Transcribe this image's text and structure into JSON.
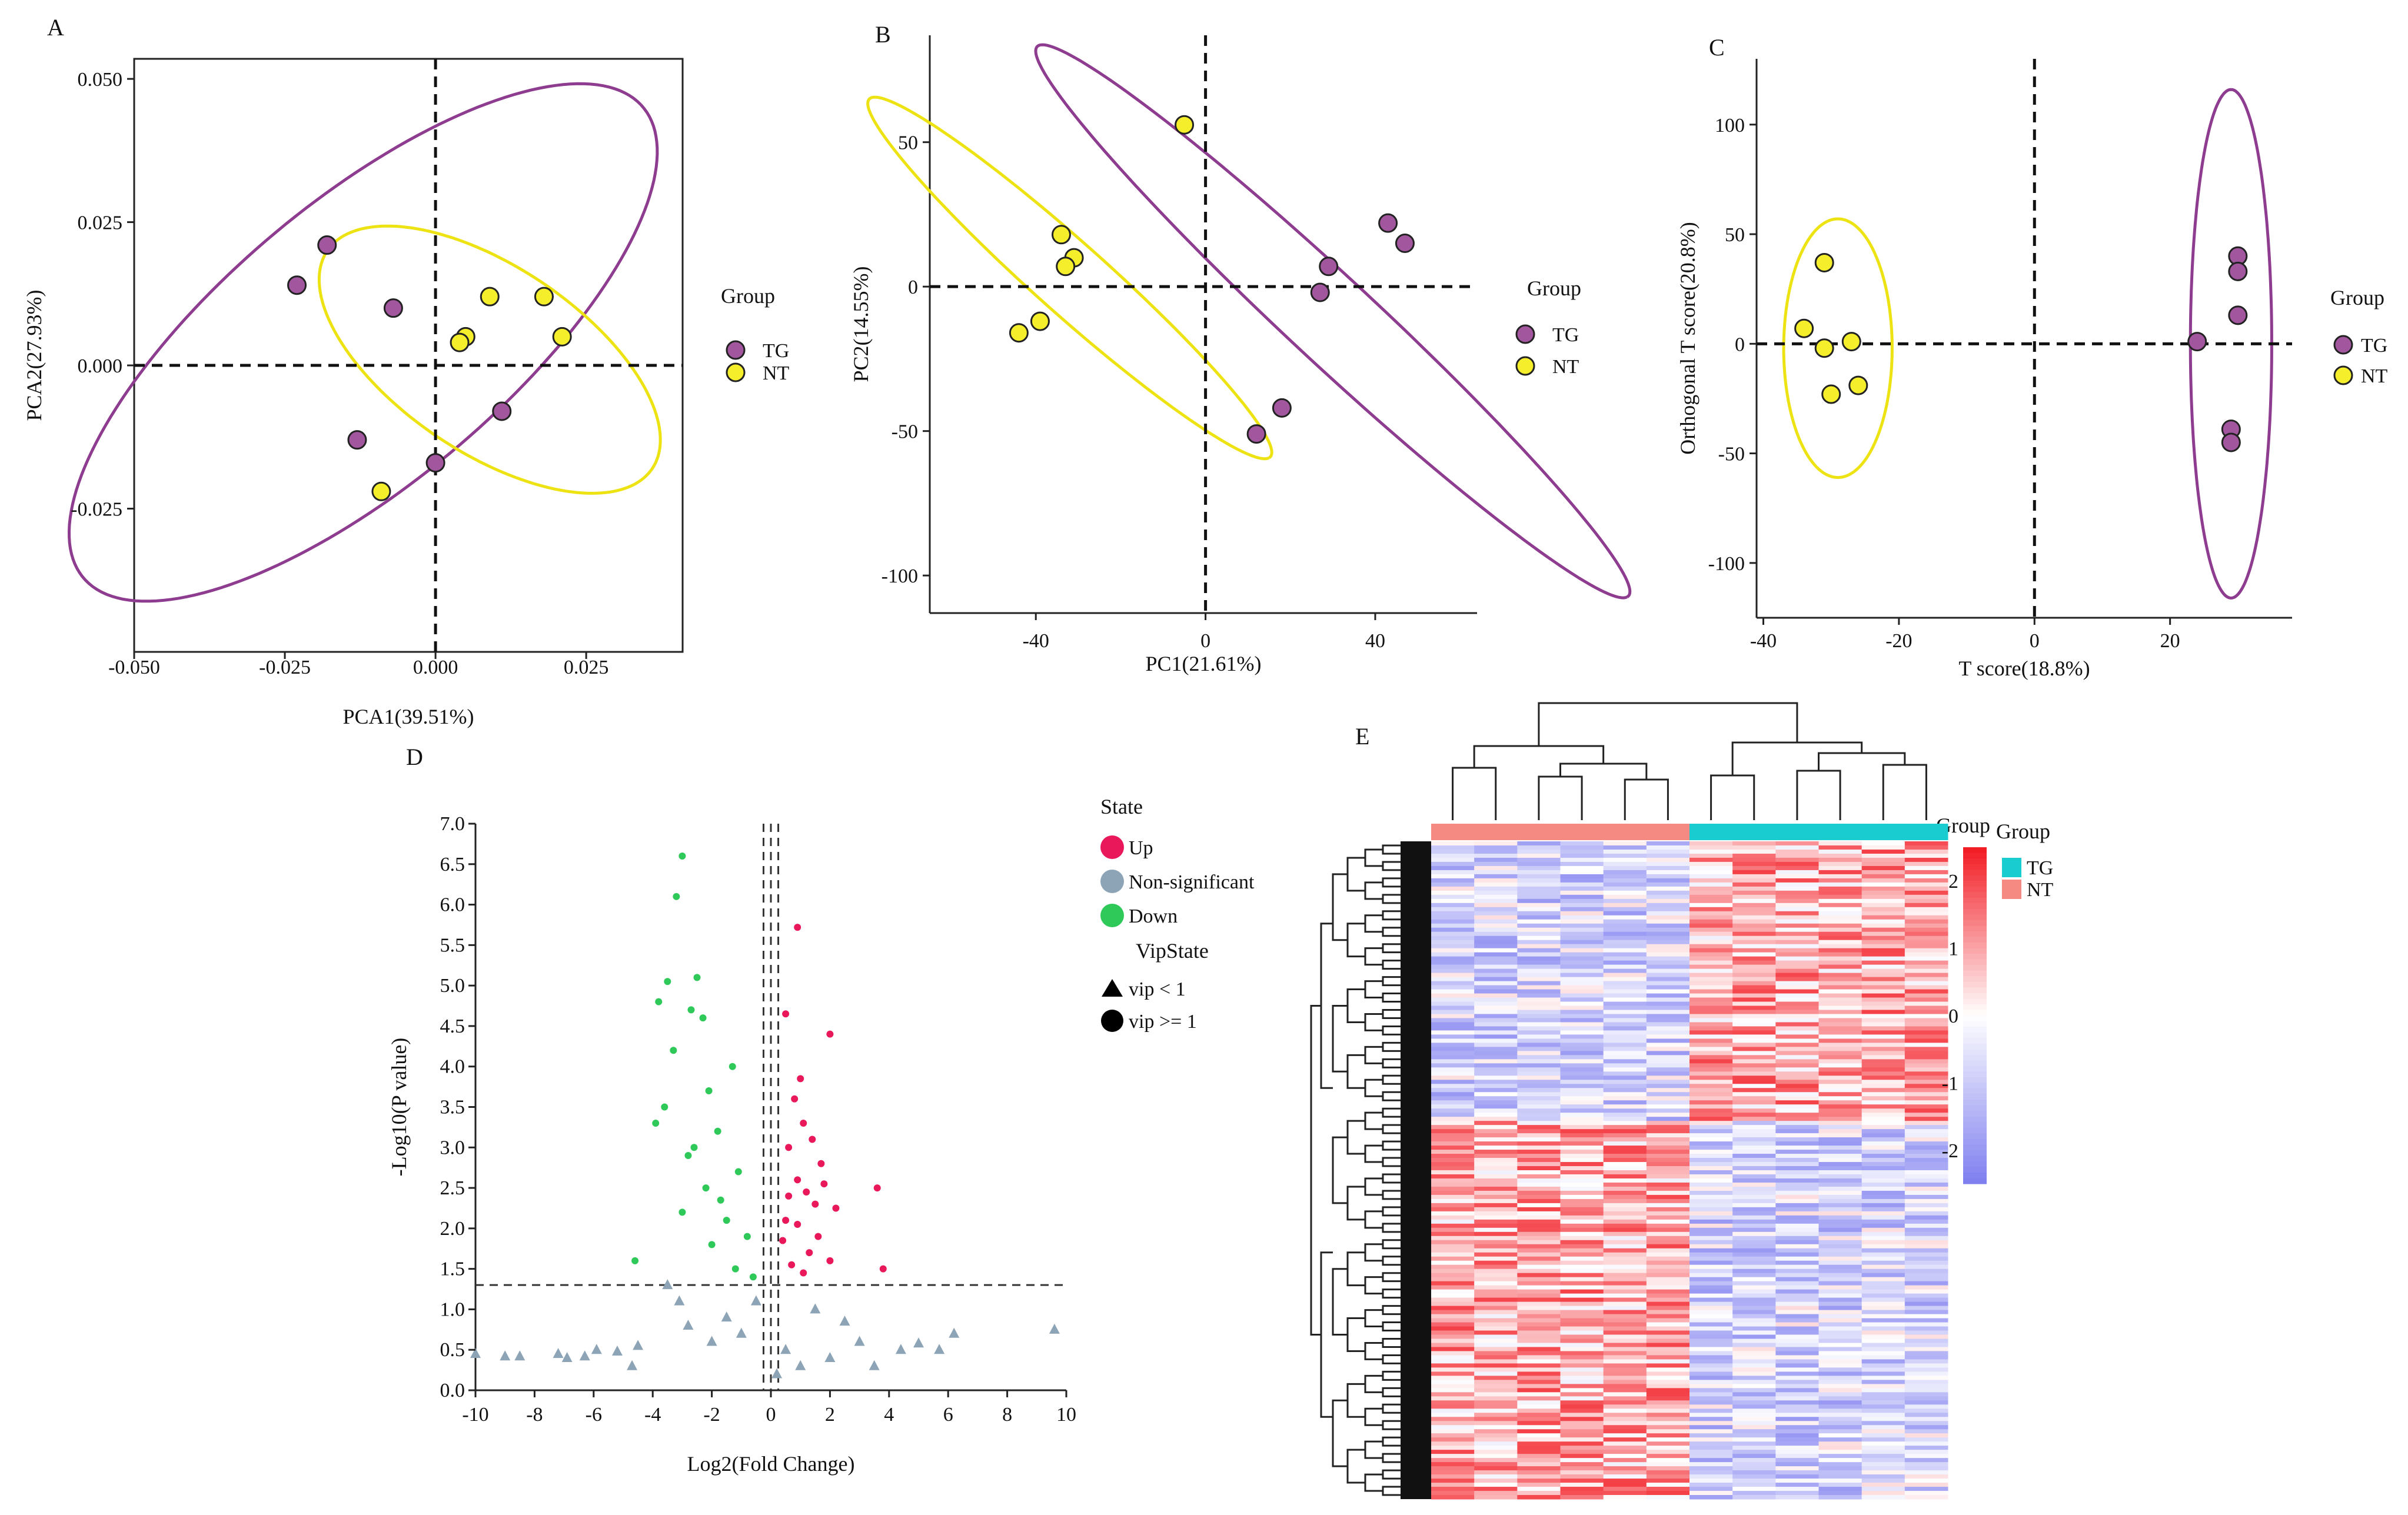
{
  "colors": {
    "TG": "#A2569E",
    "NT": "#F5EE2B",
    "ellipse_TG": "#8E3C8F",
    "ellipse_NT": "#EEE312",
    "up": "#E8185A",
    "down": "#2FC95A",
    "nonsig": "#8DA4B6",
    "heat_high": "#F21A22",
    "heat_mid": "#FFFFFF",
    "heat_low": "#7E7EF0",
    "group_TG": "#18CCD0",
    "group_NT": "#F58A82"
  },
  "panels": {
    "A": {
      "label": "A",
      "legend_title": "Group",
      "legend": [
        {
          "name": "TG",
          "color_key": "TG"
        },
        {
          "name": "NT",
          "color_key": "NT"
        }
      ]
    },
    "B": {
      "label": "B",
      "legend_title": "Group",
      "legend": [
        {
          "name": "TG",
          "color_key": "TG"
        },
        {
          "name": "NT",
          "color_key": "NT"
        }
      ]
    },
    "C": {
      "label": "C",
      "legend_title": "Group",
      "legend": [
        {
          "name": "TG",
          "color_key": "TG"
        },
        {
          "name": "NT",
          "color_key": "NT"
        }
      ]
    },
    "D": {
      "label": "D",
      "legend_state_title": "State",
      "legend_states": [
        "Up",
        "Non-significant",
        "Down"
      ],
      "legend_vip_title": "VipState",
      "legend_vip": [
        "vip < 1",
        "vip >= 1"
      ]
    },
    "E": {
      "label": "E",
      "group_title_1": "Group",
      "group_title_2": "Group",
      "legend_groups": [
        "TG",
        "NT"
      ]
    }
  },
  "chart_data": [
    {
      "id": "A",
      "type": "scatter",
      "title": "",
      "xlabel": "PCA1(39.51%)",
      "ylabel": "PCA2(27.93%)",
      "xlim": [
        -0.05,
        0.041
      ],
      "ylim": [
        -0.05,
        0.0535
      ],
      "xticks": [
        -0.05,
        -0.025,
        0.0,
        0.025
      ],
      "xtick_labels": [
        "-0.050",
        "-0.025",
        "0.000",
        "0.025"
      ],
      "yticks": [
        -0.025,
        0.0,
        0.025,
        0.05
      ],
      "ytick_labels": [
        "-0.025",
        "0.000",
        "0.025",
        "0.050"
      ],
      "series": [
        {
          "name": "TG",
          "points": [
            [
              -0.023,
              0.014
            ],
            [
              -0.018,
              0.021
            ],
            [
              -0.007,
              0.01
            ],
            [
              -0.013,
              -0.013
            ],
            [
              0.0,
              -0.017
            ],
            [
              0.011,
              -0.008
            ]
          ]
        },
        {
          "name": "NT",
          "points": [
            [
              0.009,
              0.012
            ],
            [
              0.018,
              0.012
            ],
            [
              0.005,
              0.005
            ],
            [
              0.004,
              0.004
            ],
            [
              0.021,
              0.005
            ],
            [
              -0.009,
              -0.022
            ]
          ]
        }
      ],
      "ellipses": [
        {
          "group": "TG",
          "cx": -0.012,
          "cy": 0.004,
          "rx": 0.062,
          "ry": 0.024,
          "angle_deg": 42
        },
        {
          "group": "NT",
          "cx": 0.009,
          "cy": 0.001,
          "rx": 0.033,
          "ry": 0.016,
          "angle_deg": -36
        }
      ],
      "refs": {
        "x": 0.0,
        "y": 0.0
      }
    },
    {
      "id": "B",
      "type": "scatter",
      "title": "",
      "xlabel": "PC1(21.61%)",
      "ylabel": "PC2(14.55%)",
      "xlim": [
        -65,
        64
      ],
      "ylim": [
        -113,
        87
      ],
      "xticks": [
        -40,
        0,
        40
      ],
      "xtick_labels": [
        "-40",
        "0",
        "40"
      ],
      "yticks": [
        -100,
        -50,
        0,
        50
      ],
      "ytick_labels": [
        "-100",
        "-50",
        "0",
        "50"
      ],
      "series": [
        {
          "name": "TG",
          "points": [
            [
              43,
              22
            ],
            [
              47,
              15
            ],
            [
              29,
              7
            ],
            [
              27,
              -2
            ],
            [
              18,
              -42
            ],
            [
              12,
              -51
            ]
          ]
        },
        {
          "name": "NT",
          "points": [
            [
              -5,
              56
            ],
            [
              -34,
              18
            ],
            [
              -31,
              10
            ],
            [
              -33,
              7
            ],
            [
              -39,
              -12
            ],
            [
              -44,
              -16
            ]
          ]
        }
      ],
      "ellipses": [
        {
          "group": "TG",
          "cx": 30,
          "cy": -12,
          "rx": 118,
          "ry": 12,
          "angle_deg": -54
        },
        {
          "group": "NT",
          "cx": -32,
          "cy": 3,
          "rx": 78,
          "ry": 10,
          "angle_deg": -53
        }
      ],
      "refs": {
        "x": 0,
        "y": 0
      }
    },
    {
      "id": "C",
      "type": "scatter",
      "title": "",
      "xlabel": "T score(18.8%)",
      "ylabel": "Orthogonal T score(20.8%)",
      "xlim": [
        -41,
        38
      ],
      "ylim": [
        -125,
        130
      ],
      "xticks": [
        -40,
        -20,
        0,
        20
      ],
      "xtick_labels": [
        "-40",
        "-20",
        "0",
        "20"
      ],
      "yticks": [
        -100,
        -50,
        0,
        50,
        100
      ],
      "ytick_labels": [
        "-100",
        "-50",
        "0",
        "50",
        "100"
      ],
      "series": [
        {
          "name": "TG",
          "points": [
            [
              30,
              40
            ],
            [
              30,
              33
            ],
            [
              30,
              13
            ],
            [
              24,
              1
            ],
            [
              29,
              -39
            ],
            [
              29,
              -45
            ]
          ]
        },
        {
          "name": "NT",
          "points": [
            [
              -31,
              37
            ],
            [
              -34,
              7
            ],
            [
              -31,
              -2
            ],
            [
              -27,
              1
            ],
            [
              -26,
              -19
            ],
            [
              -30,
              -23
            ]
          ]
        }
      ],
      "ellipses": [
        {
          "group": "TG",
          "cx": 29,
          "cy": 0,
          "rx": 6,
          "ry": 116,
          "angle_deg": 0
        },
        {
          "group": "NT",
          "cx": -29,
          "cy": -2,
          "rx": 8,
          "ry": 59,
          "angle_deg": 0
        }
      ],
      "refs": {
        "x": 0,
        "y": 0
      }
    },
    {
      "id": "D",
      "type": "scatter",
      "title": "",
      "xlabel": "Log2(Fold Change)",
      "ylabel": "-Log10(P value)",
      "xlim": [
        -10,
        10
      ],
      "ylim": [
        0,
        7
      ],
      "xticks": [
        -10,
        -8,
        -6,
        -4,
        -2,
        0,
        2,
        4,
        6,
        8,
        10
      ],
      "xtick_labels": [
        "-10",
        "-8",
        "-6",
        "-4",
        "-2",
        "0",
        "2",
        "4",
        "6",
        "8",
        "10"
      ],
      "yticks": [
        0,
        0.5,
        1,
        1.5,
        2,
        2.5,
        3,
        3.5,
        4,
        4.5,
        5,
        5.5,
        6,
        6.5,
        7
      ],
      "ytick_labels": [
        "0.0",
        "0.5",
        "1.0",
        "1.5",
        "2.0",
        "2.5",
        "3.0",
        "3.5",
        "4.0",
        "4.5",
        "5.0",
        "5.5",
        "6.0",
        "6.5",
        "7.0"
      ],
      "thresholds": {
        "y": 1.3,
        "x": [
          -0.25,
          0,
          0.25
        ]
      },
      "series": [
        {
          "name": "Up",
          "marker": "circle",
          "points": [
            [
              0.9,
              5.72
            ],
            [
              2.0,
              4.4
            ],
            [
              0.5,
              4.65
            ],
            [
              1.0,
              3.85
            ],
            [
              0.8,
              3.6
            ],
            [
              1.1,
              3.3
            ],
            [
              1.4,
              3.1
            ],
            [
              3.6,
              2.5
            ],
            [
              2.2,
              2.25
            ],
            [
              0.6,
              3.0
            ],
            [
              1.7,
              2.8
            ],
            [
              0.9,
              2.6
            ],
            [
              1.2,
              2.45
            ],
            [
              0.5,
              2.1
            ],
            [
              1.6,
              1.9
            ],
            [
              2.0,
              1.6
            ],
            [
              3.8,
              1.5
            ],
            [
              0.7,
              1.55
            ],
            [
              1.3,
              1.7
            ],
            [
              0.4,
              1.85
            ],
            [
              1.5,
              2.3
            ],
            [
              0.9,
              2.05
            ],
            [
              1.1,
              1.45
            ],
            [
              0.6,
              2.4
            ],
            [
              1.8,
              2.55
            ]
          ]
        },
        {
          "name": "Down",
          "marker": "circle",
          "points": [
            [
              -3.0,
              6.6
            ],
            [
              -3.2,
              6.1
            ],
            [
              -2.5,
              5.1
            ],
            [
              -3.5,
              5.05
            ],
            [
              -2.7,
              4.7
            ],
            [
              -3.8,
              4.8
            ],
            [
              -2.3,
              4.6
            ],
            [
              -3.3,
              4.2
            ],
            [
              -1.3,
              4.0
            ],
            [
              -2.1,
              3.7
            ],
            [
              -3.6,
              3.5
            ],
            [
              -1.8,
              3.2
            ],
            [
              -2.6,
              3.0
            ],
            [
              -1.1,
              2.7
            ],
            [
              -2.2,
              2.5
            ],
            [
              -3.0,
              2.2
            ],
            [
              -4.6,
              1.6
            ],
            [
              -1.5,
              2.1
            ],
            [
              -0.8,
              1.9
            ],
            [
              -2.0,
              1.8
            ],
            [
              -1.2,
              1.5
            ],
            [
              -0.6,
              1.4
            ],
            [
              -2.8,
              2.9
            ],
            [
              -1.7,
              2.35
            ],
            [
              -3.9,
              3.3
            ]
          ]
        },
        {
          "name": "Non-significant",
          "marker": "triangle",
          "points": [
            [
              -10,
              0.45
            ],
            [
              -9,
              0.42
            ],
            [
              -8.5,
              0.42
            ],
            [
              -7.2,
              0.45
            ],
            [
              -6.9,
              0.4
            ],
            [
              -6.3,
              0.42
            ],
            [
              -5.9,
              0.5
            ],
            [
              -5.2,
              0.48
            ],
            [
              -4.7,
              0.3
            ],
            [
              -4.5,
              0.55
            ],
            [
              -3.5,
              1.3
            ],
            [
              -3.1,
              1.1
            ],
            [
              -2.8,
              0.8
            ],
            [
              9.6,
              0.75
            ],
            [
              6.2,
              0.7
            ],
            [
              5.7,
              0.5
            ],
            [
              5.0,
              0.58
            ],
            [
              4.4,
              0.5
            ],
            [
              3.5,
              0.3
            ],
            [
              3.0,
              0.6
            ],
            [
              2.5,
              0.85
            ],
            [
              2.0,
              0.4
            ],
            [
              -2.0,
              0.6
            ],
            [
              1.5,
              1.0
            ],
            [
              -1.5,
              0.9
            ],
            [
              1.0,
              0.3
            ],
            [
              -1.0,
              0.7
            ],
            [
              0.5,
              0.5
            ],
            [
              -0.5,
              1.1
            ],
            [
              0.2,
              0.2
            ]
          ]
        }
      ]
    },
    {
      "id": "E",
      "type": "heatmap",
      "title": "",
      "columns": 12,
      "column_groups": [
        "NT",
        "NT",
        "NT",
        "NT",
        "NT",
        "NT",
        "TG",
        "TG",
        "TG",
        "TG",
        "TG",
        "TG"
      ],
      "rows": 160,
      "colorbar": {
        "min": -2.5,
        "max": 2.5,
        "ticks": [
          2,
          1,
          0,
          -1,
          -2
        ],
        "tick_labels": [
          "2",
          "1",
          "0",
          "-1",
          "-2"
        ]
      }
    }
  ]
}
